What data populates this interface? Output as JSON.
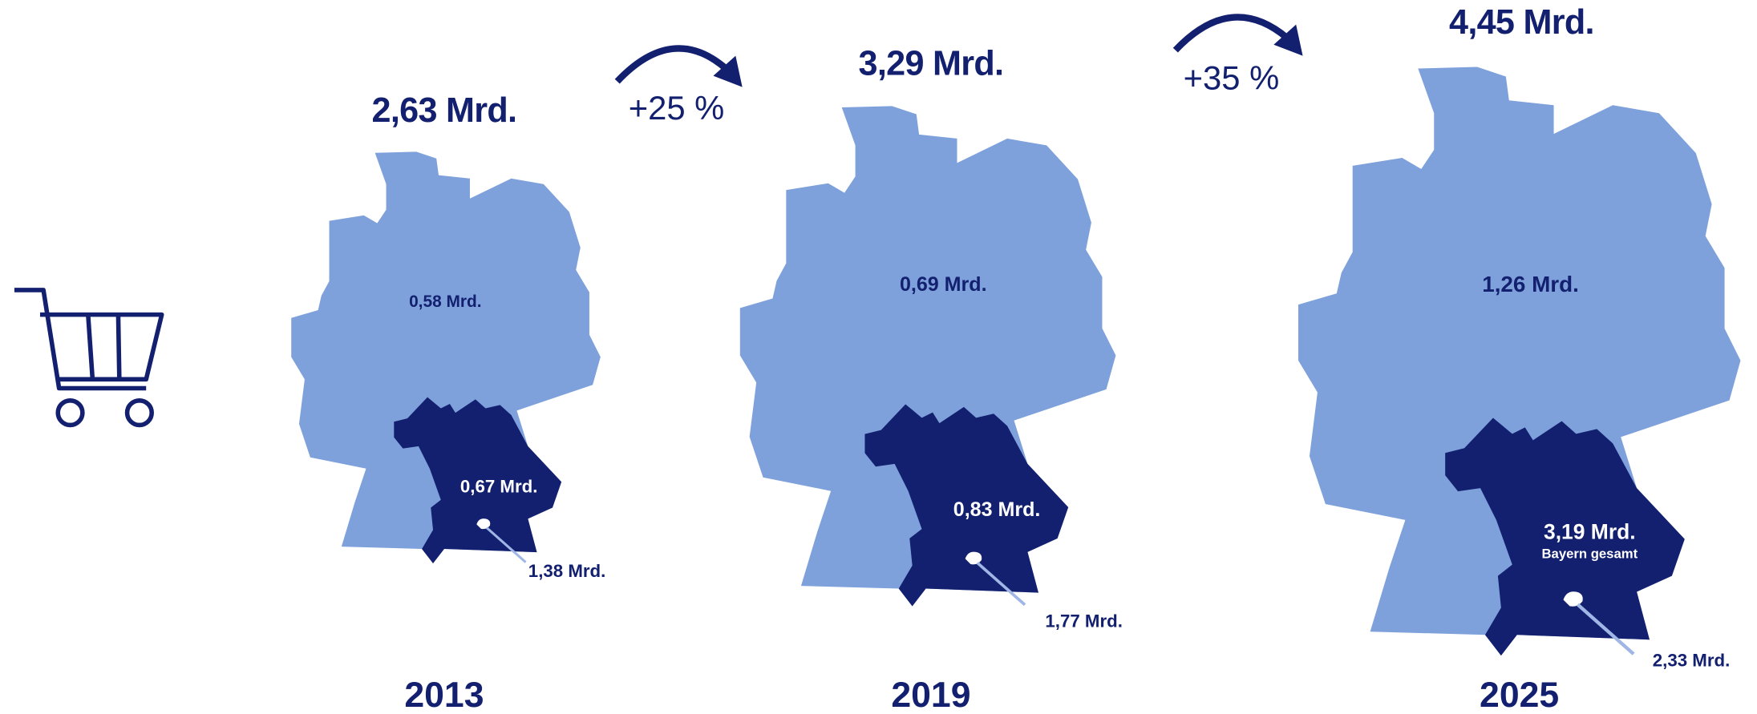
{
  "panels": [
    {
      "year": "2013",
      "total": "2,63 Mrd.",
      "germany": "0,58 Mrd.",
      "bayern": "0,67 Mrd.",
      "munich": "1,38 Mrd."
    },
    {
      "year": "2019",
      "total": "3,29 Mrd.",
      "germany": "0,69 Mrd.",
      "bayern": "0,83 Mrd.",
      "munich": "1,77 Mrd."
    },
    {
      "year": "2025",
      "total": "4,45 Mrd.",
      "germany": "1,26 Mrd.",
      "bayern": "3,19 Mrd.",
      "bayern_note": "Bayern gesamt",
      "munich": "2,33 Mrd."
    }
  ],
  "growth": [
    "+25 %",
    "+35 %"
  ]
}
